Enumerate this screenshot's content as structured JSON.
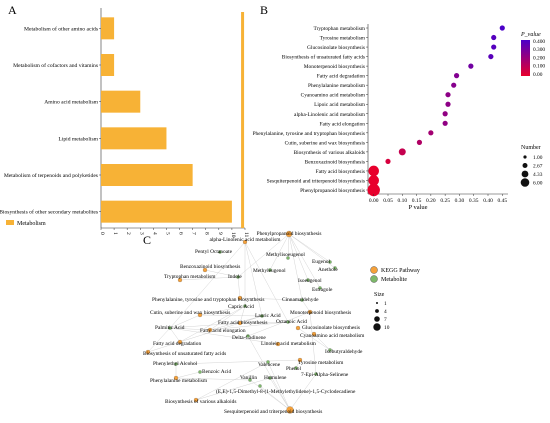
{
  "panels": {
    "A": "A",
    "B": "B",
    "C": "C"
  },
  "panelA": {
    "legend_label": "Metabolism",
    "bar_color": "#F7B236"
  },
  "panelB": {
    "xlabel": "P value",
    "legend_pvalue_title": "P_value",
    "legend_pvalue_ticks": [
      "0.400",
      "0.300",
      "0.200",
      "0.100",
      "0.00"
    ],
    "legend_number_title": "Number",
    "legend_number_ticks": [
      "1.00",
      "2.67",
      "4.33",
      "6.00"
    ]
  },
  "panelC": {
    "legend": [
      {
        "label": "KEGG Pathway",
        "color": "#F5A13A"
      },
      {
        "label": "Metabolite",
        "color": "#7DB86A"
      }
    ],
    "size_title": "Size",
    "size_ticks": [
      "1",
      "4",
      "7",
      "10"
    ],
    "node_labels": [
      "Phenylpropanoid biosynthesis",
      "alpha-Linolenic acid metabolism",
      "Pentyl Octanoate",
      "Methyleugenol",
      "Methylisoeugenol",
      "Eugenol",
      "Anethole",
      "Isoeugenol",
      "Estragole",
      "Benzoxazinoid biosynthesis",
      "Tryptophan metabolism",
      "Indole",
      "Phenylalanine, tyrosine and tryptophan biosynthesis",
      "Cinnamaldehyde",
      "Capric Acid",
      "Cutin, suberine and wax biosynthesis",
      "Lauric Acid",
      "Monoterpenoid biosynthesis",
      "Fatty acid biosynthesis",
      "Octanoic Acid",
      "Palmitic Acid",
      "Fatty acid elongation",
      "Glucosinolate biosynthesis",
      "Delta-Cadinene",
      "Cyanoamino acid metabolism",
      "Fatty acid degradation",
      "Linoleic acid metabolism",
      "Isobutyraldehyde",
      "Biosynthesis of unsaturated fatty acids",
      "Phenylethyl Alcohol",
      "Valencene",
      "Tyrosine metabolism",
      "Phenol",
      "7-Epi-Alpha-Selinene",
      "Benzoic Acid",
      "Phenylalanine metabolism",
      "Vanillin",
      "Humulene",
      "(E,E)-1,5-Dimethyl-8-(1-Methylethylidene)-1,5-Cyclodecadiene",
      "Biosynthesis of various alkaloids",
      "Sesquiterpenoid and triterpenoid biosynthesis"
    ]
  },
  "chart_data": [
    {
      "type": "bar",
      "orientation": "horizontal",
      "categories": [
        "Metabolism of other amino acids",
        "Metabolism of cofactors and vitamins",
        "Amino acid metabolism",
        "Lipid metabolism",
        "Metabolism of terpenoids and polyketides",
        "Biosynthesis of other secondary metabolites"
      ],
      "values": [
        1,
        1,
        3,
        5,
        7,
        10
      ],
      "xlim": [
        0,
        11
      ],
      "xticks": [
        "0",
        "1",
        "2",
        "3",
        "4",
        "5",
        "6",
        "7",
        "8",
        "9",
        "10",
        "11"
      ],
      "series": [
        {
          "name": "Metabolism",
          "values": [
            1,
            1,
            3,
            5,
            7,
            10
          ]
        }
      ]
    },
    {
      "type": "scatter",
      "categories": [
        "Tryptophan metabolism",
        "Tyrosine metabolism",
        "Glucosinolate biosynthesis",
        "Biosynthesis of unsaturated fatty acids",
        "Monoterpenoid biosynthesis",
        "Fatty acid degradation",
        "Phenylalanine metabolism",
        "Cyanoamino acid metabolism",
        "Lipoic acid metabolism",
        "alpha-Linolenic acid metabolism",
        "Fatty acid elongation",
        "Phenylalanine, tyrosine and tryptophan biosynthesis",
        "Cutin, suberine and wax biosynthesis",
        "Biosynthesis of various alkaloids",
        "Benzoxazinoid biosynthesis",
        "Fatty acid biosynthesis",
        "Sesquiterpenoid and triterpenoid biosynthesis",
        "Phenylpropanoid biosynthesis"
      ],
      "p_values": [
        0.45,
        0.42,
        0.42,
        0.41,
        0.34,
        0.29,
        0.28,
        0.26,
        0.26,
        0.25,
        0.25,
        0.2,
        0.16,
        0.1,
        0.05,
        0.0,
        0.0,
        0.0
      ],
      "numbers": [
        1,
        1,
        1,
        1,
        1,
        1,
        1,
        1,
        1,
        1,
        1,
        1,
        1,
        2,
        1,
        4,
        4,
        5
      ],
      "xlim": [
        -0.02,
        0.47
      ],
      "xticks": [
        "-0.05",
        "0.00",
        "0.05",
        "0.10",
        "0.15",
        "0.20",
        "0.25",
        "0.30",
        "0.35",
        "0.40",
        "0.45"
      ],
      "xlabel": "P value",
      "color_scale": {
        "low": "#E8002C",
        "high": "#4B00C8",
        "range": [
          0,
          0.45
        ]
      }
    }
  ]
}
